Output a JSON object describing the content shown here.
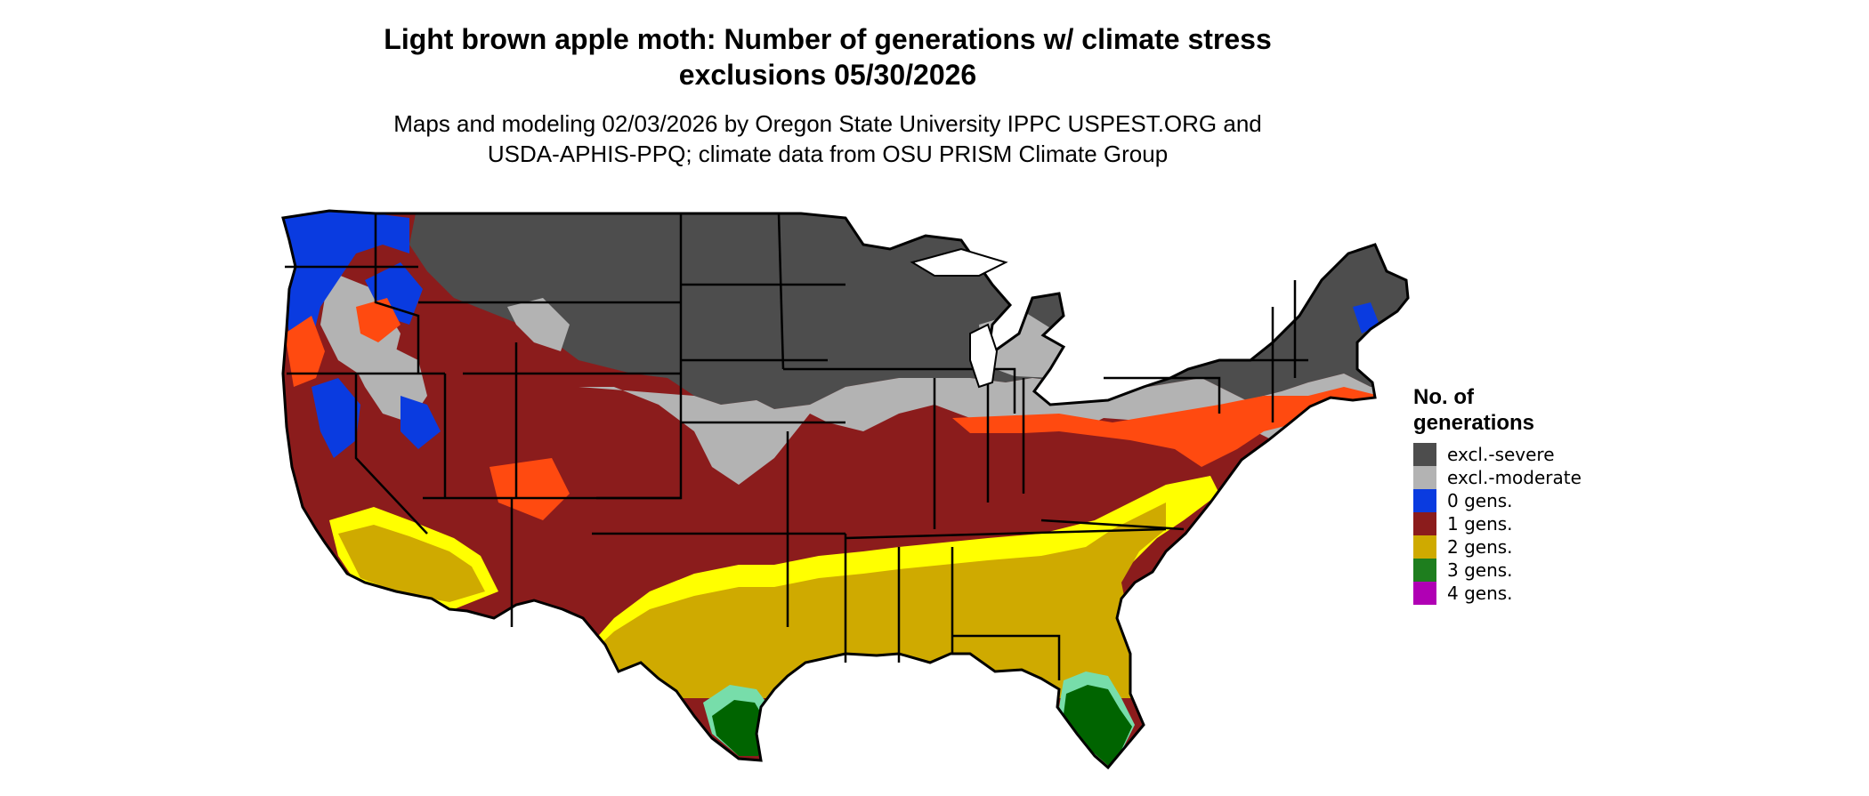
{
  "title_line1": "Light brown apple moth: Number of generations w/ climate stress",
  "title_line2": "exclusions 05/30/2026",
  "subtitle_line1": "Maps and modeling 02/03/2026 by Oregon State University IPPC USPEST.ORG and",
  "subtitle_line2": "USDA-APHIS-PPQ; climate data from OSU PRISM Climate Group",
  "legend": {
    "title_line1": "No. of",
    "title_line2": "generations",
    "items": [
      {
        "label": "excl.-severe",
        "color": "#4d4d4d"
      },
      {
        "label": "excl.-moderate",
        "color": "#b3b3b3"
      },
      {
        "label": "0 gens.",
        "color": "#0a3be0"
      },
      {
        "label": "1 gens.",
        "color": "#8b1c1c"
      },
      {
        "label": "2 gens.",
        "color": "#cfaa00"
      },
      {
        "label": "3 gens.",
        "color": "#1e7e1e"
      },
      {
        "label": "4 gens.",
        "color": "#b000b4"
      }
    ]
  },
  "map_colors": {
    "severe": "#4d4d4d",
    "moderate": "#b3b3b3",
    "zero": "#0a3be0",
    "one": "#8b1c1c",
    "one_edge": "#ff4a10",
    "two": "#cfaa00",
    "two_edge": "#ffff00",
    "three": "#006400",
    "three_edge": "#77ddaa",
    "four": "#ff22ee"
  }
}
